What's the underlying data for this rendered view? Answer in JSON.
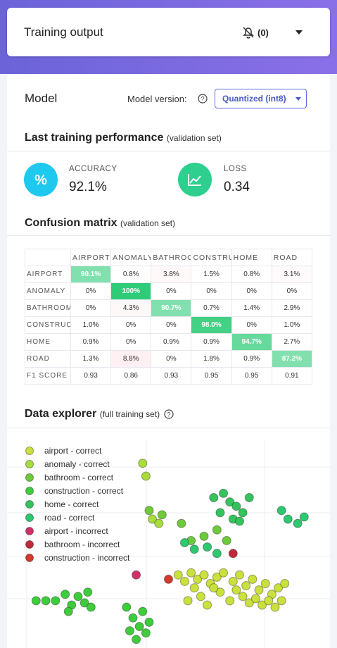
{
  "header": {
    "title": "Training output",
    "notifications": "(0)"
  },
  "model": {
    "title": "Model",
    "version_label": "Model version:",
    "version": "Quantized (int8)"
  },
  "performance": {
    "title": "Last training performance",
    "subtitle": "(validation set)",
    "metrics": [
      {
        "label": "ACCURACY",
        "value": "92.1%"
      },
      {
        "label": "LOSS",
        "value": "0.34"
      }
    ]
  },
  "confusion_matrix": {
    "title": "Confusion matrix",
    "subtitle": "(validation set)",
    "columns": [
      "AIRPORT",
      "ANOMALY",
      "BATHROOM",
      "CONSTRUCTION",
      "HOME",
      "ROAD"
    ],
    "rows": [
      {
        "label": "AIRPORT",
        "cells": [
          "90.1%",
          "0.8%",
          "3.8%",
          "1.5%",
          "0.8%",
          "3.1%"
        ]
      },
      {
        "label": "ANOMALY",
        "cells": [
          "0%",
          "100%",
          "0%",
          "0%",
          "0%",
          "0%"
        ]
      },
      {
        "label": "BATHROOM",
        "cells": [
          "0%",
          "4.3%",
          "90.7%",
          "0.7%",
          "1.4%",
          "2.9%"
        ]
      },
      {
        "label": "CONSTRUCTION",
        "cells": [
          "1.0%",
          "0%",
          "0%",
          "98.0%",
          "0%",
          "1.0%"
        ]
      },
      {
        "label": "HOME",
        "cells": [
          "0.9%",
          "0%",
          "0.9%",
          "0.9%",
          "94.7%",
          "2.7%"
        ]
      },
      {
        "label": "ROAD",
        "cells": [
          "1.3%",
          "8.8%",
          "0%",
          "1.8%",
          "0.9%",
          "87.2%"
        ]
      },
      {
        "label": "F1 SCORE",
        "cells": [
          "0.93",
          "0.86",
          "0.93",
          "0.95",
          "0.95",
          "0.91"
        ]
      }
    ]
  },
  "data_explorer": {
    "type": "scatter",
    "title": "Data explorer",
    "subtitle": "(full training set)",
    "xlim": [
      0,
      100
    ],
    "ylim": [
      0,
      100
    ],
    "series": [
      {
        "name": "airport - correct",
        "color": "#cbe03c",
        "x": [
          53,
          55,
          57,
          59,
          61,
          63,
          65,
          67,
          70,
          72,
          74,
          76,
          78,
          80,
          82,
          84,
          86,
          73,
          75,
          77,
          79,
          81,
          69,
          66,
          64,
          62,
          60,
          58,
          56,
          71,
          83,
          85
        ],
        "y": [
          34,
          31,
          35,
          32,
          34,
          30,
          33,
          35,
          31,
          34,
          29,
          32,
          27,
          30,
          25,
          28,
          30,
          24,
          21,
          23,
          20,
          22,
          22,
          26,
          28,
          20,
          24,
          28,
          22,
          27,
          19,
          22
        ]
      },
      {
        "name": "anomaly - correct",
        "color": "#a8dc3c",
        "x": [
          42,
          43,
          45,
          47
        ],
        "y": [
          86,
          80,
          60,
          58
        ]
      },
      {
        "name": "bathroom - correct",
        "color": "#6fc93c",
        "x": [
          44,
          48,
          54,
          57,
          61,
          65,
          68
        ],
        "y": [
          64,
          62,
          58,
          50,
          52,
          55,
          50
        ]
      },
      {
        "name": "construction - correct",
        "color": "#3fcc3c",
        "x": [
          9,
          12,
          15,
          18,
          20,
          22,
          24,
          26,
          25,
          19,
          37,
          39,
          41,
          43,
          40,
          38,
          42,
          44
        ],
        "y": [
          22,
          22,
          22,
          25,
          20,
          24,
          21,
          19,
          26,
          17,
          19,
          14,
          10,
          7,
          4,
          8,
          17,
          12
        ]
      },
      {
        "name": "home - correct",
        "color": "#34c35c",
        "x": [
          64,
          67,
          69,
          71,
          73,
          75,
          70,
          66,
          72
        ],
        "y": [
          70,
          72,
          68,
          66,
          63,
          70,
          60,
          63,
          59
        ]
      },
      {
        "name": "road - correct",
        "color": "#2ec86e",
        "x": [
          85,
          87,
          90,
          92,
          55,
          58,
          62,
          65
        ],
        "y": [
          64,
          60,
          58,
          61,
          49,
          46,
          47,
          44
        ]
      },
      {
        "name": "airport - incorrect",
        "color": "#d0306a",
        "x": [
          40
        ],
        "y": [
          34
        ]
      },
      {
        "name": "bathroom - incorrect",
        "color": "#c02a3a",
        "x": [
          70
        ],
        "y": [
          44
        ]
      },
      {
        "name": "construction - incorrect",
        "color": "#d23a2a",
        "x": [
          50
        ],
        "y": [
          32
        ]
      }
    ]
  }
}
